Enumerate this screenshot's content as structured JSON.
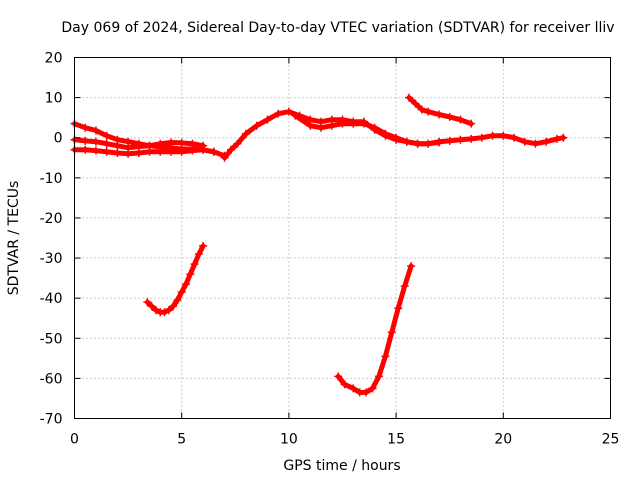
{
  "chart_data": {
    "type": "scatter",
    "title": "Day 069 of 2024, Sidereal Day-to-day VTEC variation (SDTVAR) for receiver lliv",
    "xlabel": "GPS time / hours",
    "ylabel": "SDTVAR / TECUs",
    "xlim": [
      0,
      25
    ],
    "ylim": [
      -70,
      20
    ],
    "xticks": [
      0,
      5,
      10,
      15,
      20,
      25
    ],
    "yticks": [
      -70,
      -60,
      -50,
      -40,
      -30,
      -20,
      -10,
      0,
      10,
      20
    ],
    "grid": true,
    "legend": "none",
    "color": "#ff0000",
    "series": [
      {
        "x": [
          0.0,
          0.5,
          1.0,
          1.5,
          2.0,
          2.5,
          3.0,
          3.5,
          4.0,
          4.5,
          5.0,
          5.5,
          6.0,
          6.5,
          7.0
        ],
        "y": [
          3.5,
          2.5,
          1.8,
          0.5,
          -0.5,
          -1.0,
          -1.5,
          -2.0,
          -2.3,
          -2.5,
          -2.8,
          -2.8,
          -3.0,
          -3.5,
          -4.5
        ]
      },
      {
        "x": [
          0.0,
          0.5,
          1.0,
          1.5,
          2.0,
          2.5,
          3.0,
          3.5,
          4.0,
          4.5,
          5.0,
          5.5,
          6.0
        ],
        "y": [
          -0.5,
          -0.8,
          -1.0,
          -1.5,
          -2.0,
          -2.5,
          -2.2,
          -2.0,
          -1.5,
          -1.2,
          -1.3,
          -1.5,
          -2.0
        ]
      },
      {
        "x": [
          0.0,
          0.5,
          1.0,
          1.5,
          2.0,
          2.5,
          3.0,
          3.5,
          4.0,
          4.5,
          5.0,
          5.5,
          6.0,
          6.5
        ],
        "y": [
          -3.0,
          -3.0,
          -3.2,
          -3.5,
          -3.8,
          -4.0,
          -3.8,
          -3.5,
          -3.5,
          -3.5,
          -3.5,
          -3.2,
          -3.0,
          -3.5
        ]
      },
      {
        "x": [
          7.0,
          7.3,
          7.6,
          8.0,
          8.5,
          9.0,
          9.5,
          10.0,
          10.5,
          11.0,
          11.5,
          12.0,
          12.5,
          13.0,
          13.5,
          14.0,
          14.5,
          15.0,
          15.5,
          16.0,
          16.5,
          17.0,
          17.5,
          18.0,
          18.5,
          19.0,
          19.5,
          20.0,
          20.5,
          21.0,
          21.5,
          22.0,
          22.5,
          22.8
        ],
        "y": [
          -5.0,
          -3.0,
          -1.5,
          1.0,
          3.0,
          4.5,
          6.0,
          6.5,
          5.5,
          4.5,
          4.0,
          4.5,
          4.5,
          4.0,
          4.0,
          2.0,
          0.5,
          -0.5,
          -1.0,
          -1.5,
          -1.5,
          -1.0,
          -0.8,
          -0.5,
          -0.3,
          0.0,
          0.5,
          0.5,
          0.0,
          -1.0,
          -1.5,
          -1.0,
          -0.3,
          0.0
        ]
      },
      {
        "x": [
          10.3,
          11.0,
          11.5,
          12.0,
          12.5,
          13.0,
          13.5,
          14.0,
          14.5,
          15.0,
          15.5,
          16.0,
          16.5,
          17.0
        ],
        "y": [
          5.5,
          3.0,
          2.5,
          3.0,
          3.5,
          3.5,
          3.5,
          2.5,
          1.0,
          0.0,
          -1.0,
          -1.5,
          -1.5,
          -1.2
        ]
      },
      {
        "x": [
          15.6,
          15.9,
          16.2,
          16.5,
          17.0,
          17.5,
          18.0,
          18.5
        ],
        "y": [
          10.0,
          8.5,
          7.0,
          6.5,
          5.8,
          5.2,
          4.5,
          3.5
        ]
      },
      {
        "x": [
          3.4,
          3.6,
          3.8,
          4.0,
          4.2,
          4.4,
          4.6,
          4.8,
          5.0,
          5.2,
          5.4,
          5.6,
          5.8,
          6.0
        ],
        "y": [
          -41.0,
          -42.0,
          -43.0,
          -43.5,
          -43.5,
          -43.0,
          -42.0,
          -40.5,
          -38.5,
          -36.5,
          -34.0,
          -31.5,
          -29.0,
          -27.0
        ]
      },
      {
        "x": [
          12.3,
          12.6,
          13.0,
          13.3,
          13.6,
          13.9,
          14.2,
          14.5,
          14.8,
          15.1,
          15.4,
          15.7
        ],
        "y": [
          -59.5,
          -61.5,
          -62.5,
          -63.5,
          -63.5,
          -62.5,
          -59.5,
          -54.5,
          -48.5,
          -42.5,
          -37.0,
          -32.0
        ]
      }
    ]
  }
}
